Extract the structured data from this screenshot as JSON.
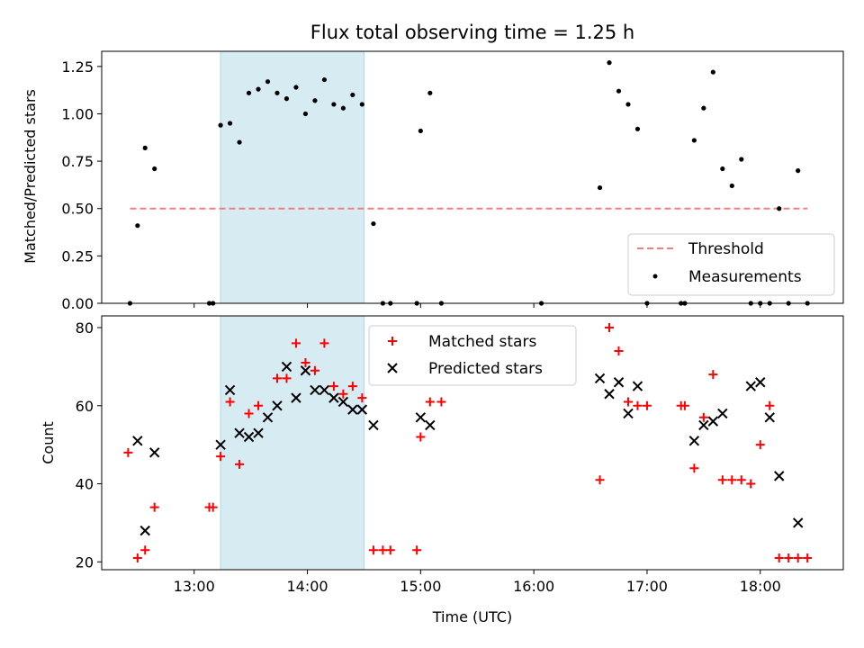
{
  "chart_data": [
    {
      "type": "scatter",
      "title": "Flux total observing time = 1.25 h",
      "xlabel": "",
      "ylabel": "Matched/Predicted stars",
      "xlim": [
        "12:11",
        "18:44"
      ],
      "ylim": [
        0,
        1.33
      ],
      "yticks": [
        "0.00",
        "0.25",
        "0.50",
        "0.75",
        "1.00",
        "1.25"
      ],
      "shaded_span": [
        "13:14",
        "14:30"
      ],
      "grid": false,
      "legend_position": "lower-right",
      "legend": [
        "Threshold",
        "Measurements"
      ],
      "threshold": {
        "name": "Threshold",
        "value": 0.5,
        "x_range": [
          "12:26",
          "18:25"
        ],
        "color": "#f08080"
      },
      "series": [
        {
          "name": "Measurements",
          "color": "#000000",
          "points": [
            [
              "12:26",
              0.0
            ],
            [
              "12:30",
              0.41
            ],
            [
              "12:34",
              0.82
            ],
            [
              "12:39",
              0.71
            ],
            [
              "13:08",
              0.0
            ],
            [
              "13:10",
              0.0
            ],
            [
              "13:14",
              0.94
            ],
            [
              "13:19",
              0.95
            ],
            [
              "13:24",
              0.85
            ],
            [
              "13:29",
              1.11
            ],
            [
              "13:34",
              1.13
            ],
            [
              "13:39",
              1.17
            ],
            [
              "13:44",
              1.11
            ],
            [
              "13:49",
              1.08
            ],
            [
              "13:54",
              1.14
            ],
            [
              "13:59",
              1.0
            ],
            [
              "14:04",
              1.07
            ],
            [
              "14:09",
              1.18
            ],
            [
              "14:14",
              1.05
            ],
            [
              "14:19",
              1.03
            ],
            [
              "14:24",
              1.1
            ],
            [
              "14:29",
              1.05
            ],
            [
              "14:35",
              0.42
            ],
            [
              "14:40",
              0.0
            ],
            [
              "14:44",
              0.0
            ],
            [
              "14:58",
              0.0
            ],
            [
              "15:00",
              0.91
            ],
            [
              "15:05",
              1.11
            ],
            [
              "15:11",
              0.0
            ],
            [
              "16:04",
              0.0
            ],
            [
              "16:35",
              0.61
            ],
            [
              "16:40",
              1.27
            ],
            [
              "16:45",
              1.12
            ],
            [
              "16:50",
              1.05
            ],
            [
              "16:55",
              0.92
            ],
            [
              "17:00",
              0.0
            ],
            [
              "17:18",
              0.0
            ],
            [
              "17:20",
              0.0
            ],
            [
              "17:25",
              0.86
            ],
            [
              "17:30",
              1.03
            ],
            [
              "17:35",
              1.22
            ],
            [
              "17:40",
              0.71
            ],
            [
              "17:45",
              0.62
            ],
            [
              "17:50",
              0.76
            ],
            [
              "17:55",
              0.0
            ],
            [
              "18:00",
              0.0
            ],
            [
              "18:05",
              0.0
            ],
            [
              "18:10",
              0.5
            ],
            [
              "18:15",
              0.0
            ],
            [
              "18:20",
              0.7
            ],
            [
              "18:25",
              0.0
            ]
          ]
        }
      ]
    },
    {
      "type": "scatter",
      "title": "",
      "xlabel": "Time (UTC)",
      "ylabel": "Count",
      "xlim": [
        "12:11",
        "18:44"
      ],
      "ylim": [
        18,
        83
      ],
      "xticks": [
        "13:00",
        "14:00",
        "15:00",
        "16:00",
        "17:00",
        "18:00"
      ],
      "yticks": [
        20,
        40,
        60,
        80
      ],
      "shaded_span": [
        "13:14",
        "14:30"
      ],
      "grid": false,
      "legend_position": "upper-center",
      "legend": [
        "Matched stars",
        "Predicted stars"
      ],
      "series": [
        {
          "name": "Matched stars",
          "marker": "plus",
          "color": "#ff0000",
          "points": [
            [
              "12:25",
              48
            ],
            [
              "12:30",
              21
            ],
            [
              "12:34",
              23
            ],
            [
              "12:39",
              34
            ],
            [
              "13:08",
              34
            ],
            [
              "13:10",
              34
            ],
            [
              "13:14",
              47
            ],
            [
              "13:19",
              61
            ],
            [
              "13:24",
              45
            ],
            [
              "13:29",
              58
            ],
            [
              "13:34",
              60
            ],
            [
              "13:44",
              67
            ],
            [
              "13:49",
              67
            ],
            [
              "13:54",
              76
            ],
            [
              "13:59",
              71
            ],
            [
              "14:04",
              69
            ],
            [
              "14:09",
              76
            ],
            [
              "14:14",
              65
            ],
            [
              "14:19",
              63
            ],
            [
              "14:24",
              65
            ],
            [
              "14:29",
              62
            ],
            [
              "14:35",
              23
            ],
            [
              "14:40",
              23
            ],
            [
              "14:44",
              23
            ],
            [
              "14:58",
              23
            ],
            [
              "15:00",
              52
            ],
            [
              "15:05",
              61
            ],
            [
              "15:11",
              61
            ],
            [
              "16:35",
              41
            ],
            [
              "16:40",
              80
            ],
            [
              "16:45",
              74
            ],
            [
              "16:50",
              61
            ],
            [
              "16:55",
              60
            ],
            [
              "17:00",
              60
            ],
            [
              "17:18",
              60
            ],
            [
              "17:20",
              60
            ],
            [
              "17:25",
              44
            ],
            [
              "17:30",
              57
            ],
            [
              "17:35",
              68
            ],
            [
              "17:40",
              41
            ],
            [
              "17:45",
              41
            ],
            [
              "17:50",
              41
            ],
            [
              "17:55",
              40
            ],
            [
              "18:00",
              50
            ],
            [
              "18:05",
              60
            ],
            [
              "18:10",
              21
            ],
            [
              "18:15",
              21
            ],
            [
              "18:20",
              21
            ],
            [
              "18:25",
              21
            ]
          ]
        },
        {
          "name": "Predicted stars",
          "marker": "x",
          "color": "#000000",
          "points": [
            [
              "12:30",
              51
            ],
            [
              "12:34",
              28
            ],
            [
              "12:39",
              48
            ],
            [
              "13:14",
              50
            ],
            [
              "13:19",
              64
            ],
            [
              "13:24",
              53
            ],
            [
              "13:29",
              52
            ],
            [
              "13:34",
              53
            ],
            [
              "13:39",
              57
            ],
            [
              "13:44",
              60
            ],
            [
              "13:49",
              70
            ],
            [
              "13:54",
              62
            ],
            [
              "13:59",
              69
            ],
            [
              "14:04",
              64
            ],
            [
              "14:09",
              64
            ],
            [
              "14:14",
              62
            ],
            [
              "14:19",
              61
            ],
            [
              "14:24",
              59
            ],
            [
              "14:29",
              59
            ],
            [
              "14:35",
              55
            ],
            [
              "15:00",
              57
            ],
            [
              "15:05",
              55
            ],
            [
              "16:35",
              67
            ],
            [
              "16:40",
              63
            ],
            [
              "16:45",
              66
            ],
            [
              "16:50",
              58
            ],
            [
              "16:55",
              65
            ],
            [
              "17:25",
              51
            ],
            [
              "17:30",
              55
            ],
            [
              "17:35",
              56
            ],
            [
              "17:40",
              58
            ],
            [
              "17:55",
              65
            ],
            [
              "18:00",
              66
            ],
            [
              "18:05",
              57
            ],
            [
              "18:10",
              42
            ],
            [
              "18:20",
              30
            ]
          ]
        }
      ]
    }
  ]
}
